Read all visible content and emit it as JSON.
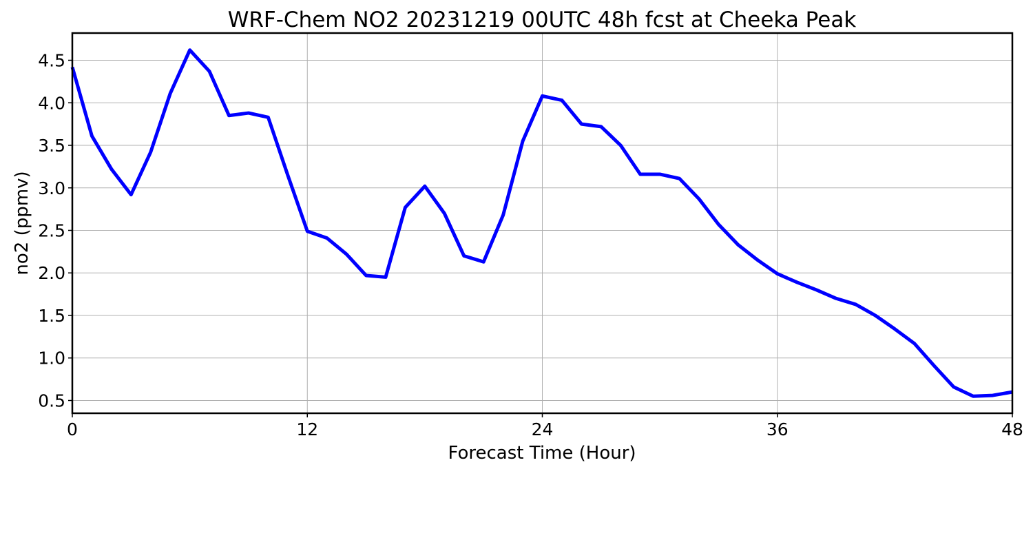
{
  "chart_data": {
    "type": "line",
    "title": "WRF-Chem NO2  20231219 00UTC 48h fcst at Cheeka Peak",
    "xlabel": "Forecast Time (Hour)",
    "ylabel": "no2  (ppmv)",
    "xlim": [
      0,
      48
    ],
    "ylim": [
      0.35,
      4.82
    ],
    "xticks": [
      0,
      12,
      24,
      36,
      48
    ],
    "xtick_labels": [
      "0",
      "12",
      "24",
      "36",
      "48"
    ],
    "yticks": [
      0.5,
      1.0,
      1.5,
      2.0,
      2.5,
      3.0,
      3.5,
      4.0,
      4.5
    ],
    "ytick_labels": [
      "0.5",
      "1.0",
      "1.5",
      "2.0",
      "2.5",
      "3.0",
      "3.5",
      "4.0",
      "4.5"
    ],
    "grid": true,
    "series": [
      {
        "color": "#0000ff",
        "x": [
          0,
          1,
          2,
          3,
          4,
          5,
          6,
          7,
          8,
          9,
          10,
          11,
          12,
          13,
          14,
          15,
          16,
          17,
          18,
          19,
          20,
          21,
          22,
          23,
          24,
          25,
          26,
          27,
          28,
          29,
          30,
          31,
          32,
          33,
          34,
          35,
          36,
          37,
          38,
          39,
          40,
          41,
          42,
          43,
          44,
          45,
          46,
          47,
          48
        ],
        "values": [
          4.42,
          3.61,
          3.22,
          2.92,
          3.42,
          4.11,
          4.62,
          4.37,
          3.85,
          3.88,
          3.83,
          3.15,
          2.49,
          2.41,
          2.22,
          1.97,
          1.95,
          2.77,
          3.02,
          2.7,
          2.2,
          2.13,
          2.68,
          3.55,
          4.08,
          4.03,
          3.75,
          3.72,
          3.5,
          3.16,
          3.16,
          3.11,
          2.87,
          2.57,
          2.33,
          2.15,
          1.99,
          1.89,
          1.8,
          1.7,
          1.63,
          1.5,
          1.34,
          1.17,
          0.91,
          0.66,
          0.55,
          0.56,
          0.6
        ]
      }
    ]
  }
}
